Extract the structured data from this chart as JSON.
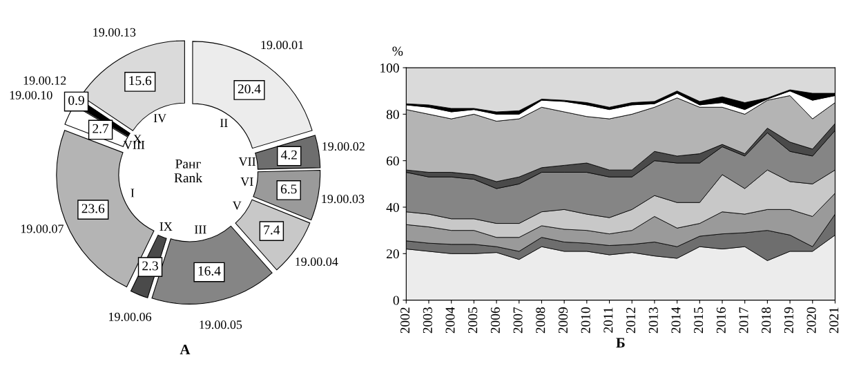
{
  "chart_data": [
    {
      "type": "donut",
      "xlabel": "А",
      "categories": [
        "19.00.01",
        "19.00.02",
        "19.00.03",
        "19.00.04",
        "19.00.05",
        "19.00.06",
        "19.00.07",
        "19.00.10",
        "19.00.12",
        "19.00.13"
      ],
      "values": [
        20.4,
        4.2,
        6.5,
        7.4,
        16.4,
        2.3,
        23.6,
        2.7,
        0.9,
        15.6
      ],
      "colors": [
        "#ececec",
        "#6e6e6e",
        "#9a9a9a",
        "#c8c8c8",
        "#858585",
        "#4a4a4a",
        "#b4b4b4",
        "#ffffff",
        "#000000",
        "#dadada"
      ],
      "data_labels": true,
      "annotations": [
        "Ранг\nRank",
        {
          "text": "II",
          "x": "19.00.01"
        },
        {
          "text": "VII",
          "x": "19.00.02"
        },
        {
          "text": "VI",
          "x": "19.00.03"
        },
        {
          "text": "V",
          "x": "19.00.04"
        },
        {
          "text": "III",
          "x": "19.00.05"
        },
        {
          "text": "IX",
          "x": "19.00.06"
        },
        {
          "text": "I",
          "x": "19.00.07"
        },
        {
          "text": "VIII",
          "x": "19.00.10"
        },
        {
          "text": "X",
          "x": "19.00.12"
        },
        {
          "text": "IV",
          "x": "19.00.13"
        }
      ]
    },
    {
      "type": "area",
      "stacked": true,
      "xlabel": "Б",
      "ylabel": "%",
      "grid": false,
      "x": [
        2002,
        2003,
        2004,
        2005,
        2006,
        2007,
        2008,
        2009,
        2010,
        2011,
        2012,
        2013,
        2014,
        2015,
        2016,
        2017,
        2018,
        2019,
        2020,
        2021
      ],
      "xlim": [
        2002,
        2021
      ],
      "xticks": [
        2002,
        2003,
        2004,
        2005,
        2006,
        2007,
        2008,
        2009,
        2010,
        2011,
        2012,
        2013,
        2014,
        2015,
        2016,
        2017,
        2018,
        2019,
        2020,
        2021
      ],
      "ylim": [
        0,
        100
      ],
      "yticks": [
        0,
        20,
        40,
        60,
        80,
        100
      ],
      "series": [
        {
          "color": "#ececec",
          "values": [
            22,
            21,
            20,
            20,
            20.5,
            17.5,
            23,
            21,
            21,
            19.5,
            20.5,
            19,
            18,
            23,
            22,
            23,
            17,
            21,
            21,
            28
          ]
        },
        {
          "color": "#6e6e6e",
          "values": [
            3.5,
            3.5,
            4,
            4,
            2.5,
            3.5,
            4,
            4,
            3.5,
            4,
            3.5,
            6,
            5,
            4.5,
            6.5,
            6,
            13,
            7,
            2,
            9
          ]
        },
        {
          "color": "#9a9a9a",
          "values": [
            7,
            7,
            6,
            6,
            4,
            6,
            5,
            5.5,
            5.5,
            5,
            6,
            11,
            8,
            5.5,
            9.5,
            8,
            9,
            11,
            13,
            9
          ]
        },
        {
          "color": "#c8c8c8",
          "values": [
            5.5,
            5.5,
            5,
            5,
            6,
            6,
            6,
            8.5,
            7,
            7,
            9,
            9,
            11,
            9,
            16,
            11,
            17,
            12,
            14,
            10
          ]
        },
        {
          "color": "#858585",
          "values": [
            17,
            16,
            18,
            17,
            15,
            17,
            17,
            16,
            18,
            17.5,
            14,
            15,
            17,
            17,
            12,
            14,
            16,
            13,
            12,
            17
          ]
        },
        {
          "color": "#4a4a4a",
          "values": [
            1,
            2,
            2,
            2,
            3,
            3,
            2,
            3,
            4,
            3,
            3,
            4,
            3,
            4,
            1,
            1,
            2,
            4,
            3,
            3
          ]
        },
        {
          "color": "#b4b4b4",
          "values": [
            26,
            25,
            23,
            26,
            26,
            25,
            26,
            23,
            20,
            22,
            24,
            19,
            25,
            20,
            16,
            17,
            12,
            20,
            13,
            9
          ]
        },
        {
          "color": "#ffffff",
          "values": [
            2,
            3,
            3,
            2,
            3,
            2,
            3,
            4.5,
            5,
            4,
            4,
            1.5,
            2,
            1,
            2,
            2,
            0.5,
            2,
            8,
            3
          ]
        },
        {
          "color": "#000000",
          "values": [
            0.5,
            1,
            1.5,
            0.5,
            1,
            1.5,
            0.5,
            0.5,
            1,
            1,
            1,
            1,
            1,
            1.5,
            2.5,
            3,
            0.5,
            0.5,
            3,
            1
          ]
        },
        {
          "color": "#dadada",
          "values": [
            15.5,
            16,
            17.5,
            17.5,
            19,
            18.5,
            13.5,
            14,
            15,
            17,
            15,
            14.5,
            10,
            14.5,
            12.5,
            15,
            13,
            9.5,
            11,
            11
          ]
        }
      ]
    }
  ]
}
